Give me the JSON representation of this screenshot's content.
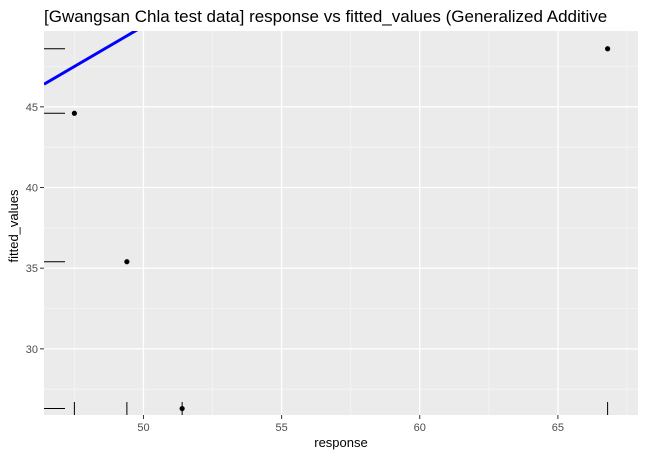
{
  "chart_data": {
    "type": "scatter",
    "title": "[Gwangsan Chla test data] response vs fitted_values (Generalized Additive",
    "xlabel": "response",
    "ylabel": "fitted_values",
    "xlim": [
      46.4,
      67.9
    ],
    "ylim": [
      25.9,
      49.7
    ],
    "x_ticks": [
      50,
      55,
      60,
      65
    ],
    "y_ticks": [
      30,
      35,
      40,
      45
    ],
    "grid": true,
    "background": "#ebebeb",
    "points": [
      {
        "x": 47.5,
        "y": 44.6
      },
      {
        "x": 49.4,
        "y": 35.4
      },
      {
        "x": 51.4,
        "y": 26.3
      },
      {
        "x": 66.8,
        "y": 48.6
      }
    ],
    "reference_line": {
      "slope": 1,
      "intercept": 0,
      "color": "#0000ff"
    },
    "rug_x": [
      47.5,
      49.4,
      51.4,
      66.8
    ],
    "rug_y": [
      44.6,
      35.4,
      26.3,
      48.6
    ]
  }
}
